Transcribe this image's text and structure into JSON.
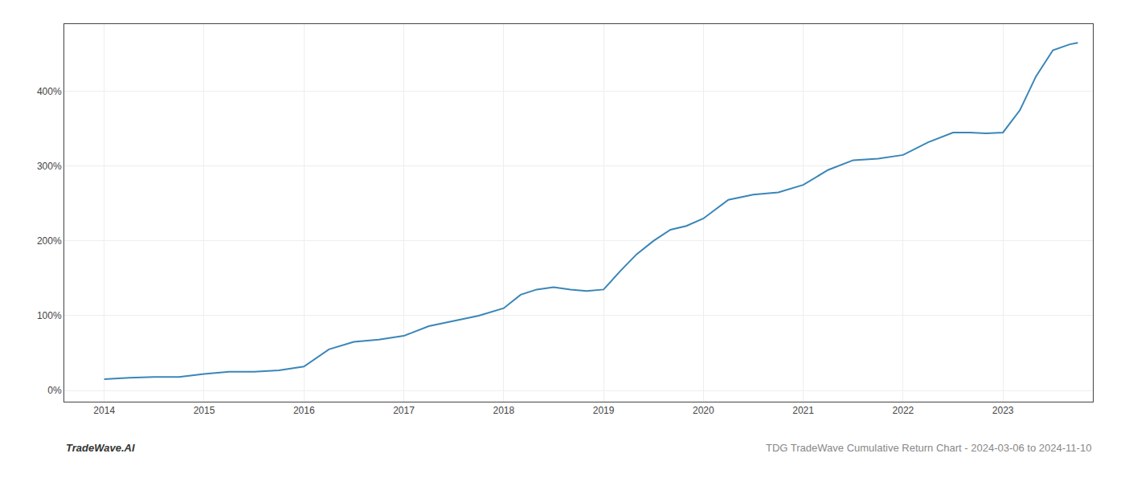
{
  "chart_data": {
    "type": "line",
    "x": [
      2014.0,
      2014.25,
      2014.5,
      2014.75,
      2015.0,
      2015.25,
      2015.5,
      2015.75,
      2016.0,
      2016.25,
      2016.5,
      2016.75,
      2017.0,
      2017.25,
      2017.5,
      2017.75,
      2018.0,
      2018.17,
      2018.33,
      2018.5,
      2018.67,
      2018.83,
      2019.0,
      2019.17,
      2019.33,
      2019.5,
      2019.67,
      2019.83,
      2020.0,
      2020.25,
      2020.5,
      2020.75,
      2021.0,
      2021.25,
      2021.5,
      2021.75,
      2022.0,
      2022.25,
      2022.5,
      2022.67,
      2022.83,
      2023.0,
      2023.17,
      2023.33,
      2023.5,
      2023.67,
      2023.75
    ],
    "values": [
      15,
      17,
      18,
      18,
      22,
      25,
      25,
      27,
      32,
      55,
      65,
      68,
      73,
      86,
      93,
      100,
      110,
      128,
      135,
      138,
      135,
      133,
      135,
      160,
      182,
      200,
      215,
      220,
      230,
      255,
      262,
      265,
      275,
      295,
      308,
      310,
      315,
      332,
      345,
      345,
      344,
      345,
      375,
      420,
      455,
      463,
      465
    ],
    "color": "#3a86b8",
    "xlim": [
      2013.6,
      2023.9
    ],
    "xticks": [
      2014,
      2015,
      2016,
      2017,
      2018,
      2019,
      2020,
      2021,
      2022,
      2023
    ],
    "ylim": [
      -15,
      490
    ],
    "yticks": [
      {
        "value": 0,
        "label": "0%"
      },
      {
        "value": 100,
        "label": "100%"
      },
      {
        "value": 200,
        "label": "200%"
      },
      {
        "value": 300,
        "label": "300%"
      },
      {
        "value": 400,
        "label": "400%"
      }
    ],
    "grid": true,
    "annotations": [
      "TradeWave.AI",
      "TDG TradeWave Cumulative Return Chart - 2024-03-06 to 2024-11-10"
    ]
  }
}
